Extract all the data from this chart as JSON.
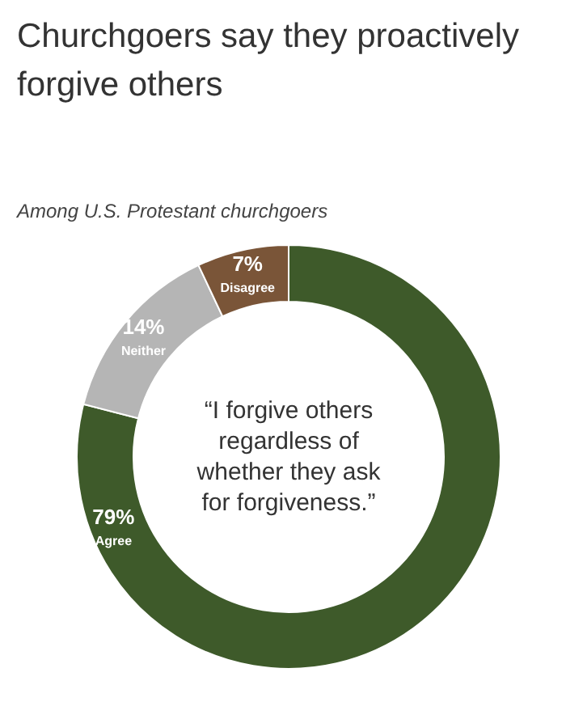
{
  "chart_data": {
    "type": "donut",
    "title": "Churchgoers say they proactively\nforgive others",
    "subtitle": "Among U.S. Protestant churchgoers",
    "categories": [
      "Agree",
      "Neither",
      "Disagree"
    ],
    "values": [
      79,
      14,
      7
    ],
    "colors": [
      "#3e5a2a",
      "#b5b5b5",
      "#7a5538"
    ],
    "value_labels": [
      "79%",
      "14%",
      "7%"
    ],
    "annotations": [
      "“I forgive others\nregardless of\nwhether they ask\nfor forgiveness.”"
    ]
  }
}
